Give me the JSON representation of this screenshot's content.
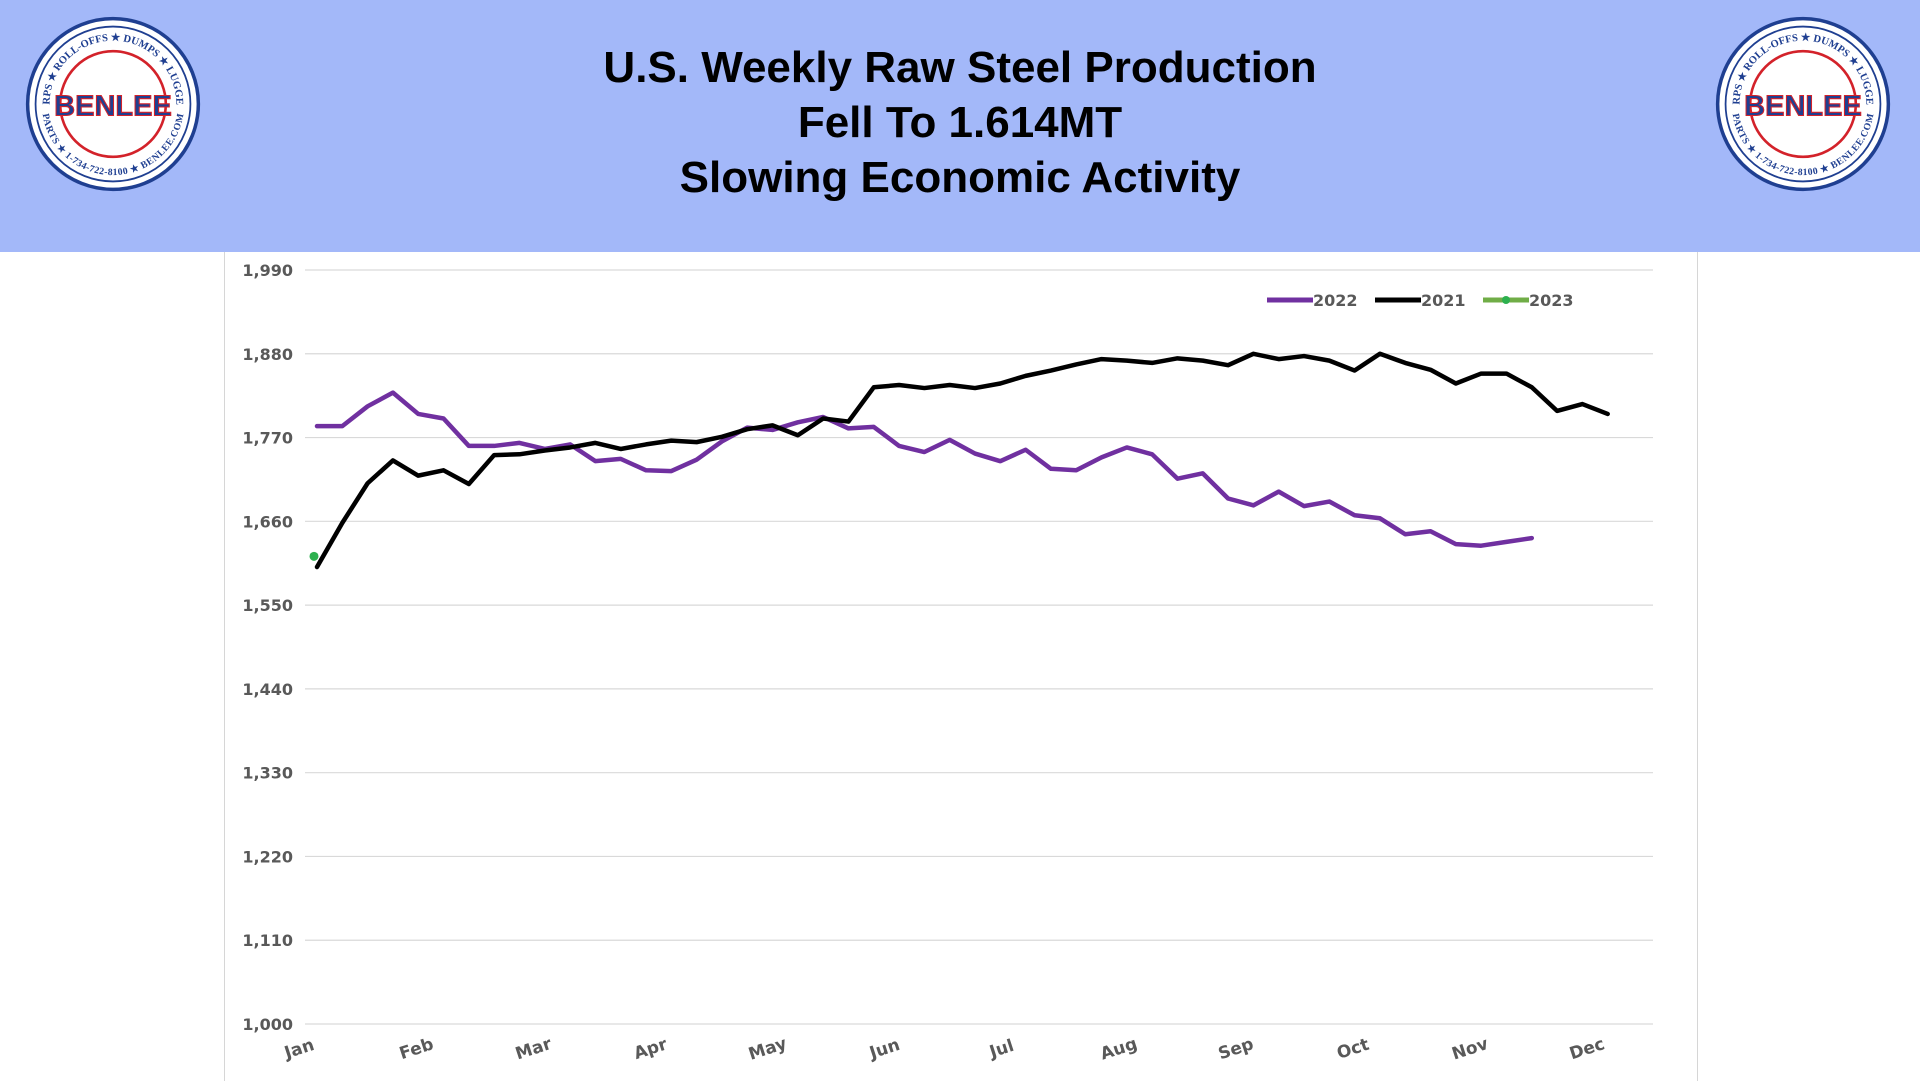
{
  "header": {
    "title_lines": [
      "U.S. Weekly Raw Steel Production",
      "Fell To 1.614MT",
      "Slowing Economic Activity"
    ],
    "background_color": "#a3b8f9"
  },
  "logos": {
    "top_text": "TARPS ★ ROLL-OFFS ★ DUMPS ★ LUGGERS",
    "bottom_text": "PARTS ★ 1-734-722-8100 ★ BENLEE.COM",
    "brand": "BENLEE"
  },
  "chart_data": {
    "type": "line",
    "title": "",
    "xlabel": "",
    "ylabel": "",
    "ylim": [
      1000,
      1990
    ],
    "y_ticks": [
      "1,990",
      "1,880",
      "1,770",
      "1,660",
      "1,550",
      "1,440",
      "1,330",
      "1,220",
      "1,110",
      "1,000"
    ],
    "x_ticks": [
      "Jan",
      "Feb",
      "Mar",
      "Apr",
      "May",
      "Jun",
      "Jul",
      "Aug",
      "Sep",
      "Oct",
      "Nov",
      "Dec"
    ],
    "x_unit": "week",
    "grid": "horizontal",
    "legend_position": "top-right",
    "series": [
      {
        "name": "2022",
        "color": "#7030a0",
        "values": [
          1785,
          1785,
          1811,
          1829,
          1801,
          1795,
          1759,
          1759,
          1763,
          1755,
          1761,
          1739,
          1742,
          1727,
          1726,
          1741,
          1765,
          1783,
          1780,
          1790,
          1797,
          1782,
          1784,
          1759,
          1751,
          1767,
          1749,
          1739,
          1754,
          1729,
          1727,
          1744,
          1757,
          1748,
          1716,
          1723,
          1690,
          1681,
          1699,
          1680,
          1686,
          1668,
          1664,
          1643,
          1647,
          1630,
          1628,
          1633,
          1638
        ]
      },
      {
        "name": "2021",
        "color": "#000000",
        "values": [
          1600,
          1658,
          1710,
          1740,
          1720,
          1727,
          1709,
          1747,
          1748,
          1753,
          1757,
          1763,
          1755,
          1761,
          1766,
          1764,
          1771,
          1781,
          1786,
          1773,
          1795,
          1791,
          1836,
          1839,
          1835,
          1839,
          1835,
          1841,
          1851,
          1858,
          1866,
          1873,
          1871,
          1868,
          1874,
          1871,
          1865,
          1880,
          1873,
          1877,
          1871,
          1858,
          1880,
          1868,
          1859,
          1841,
          1854,
          1854,
          1836,
          1805,
          1814,
          1801
        ]
      },
      {
        "name": "2023",
        "color": "#2db04f",
        "legend_color": "#70ad47",
        "values": [
          1614
        ]
      }
    ]
  }
}
